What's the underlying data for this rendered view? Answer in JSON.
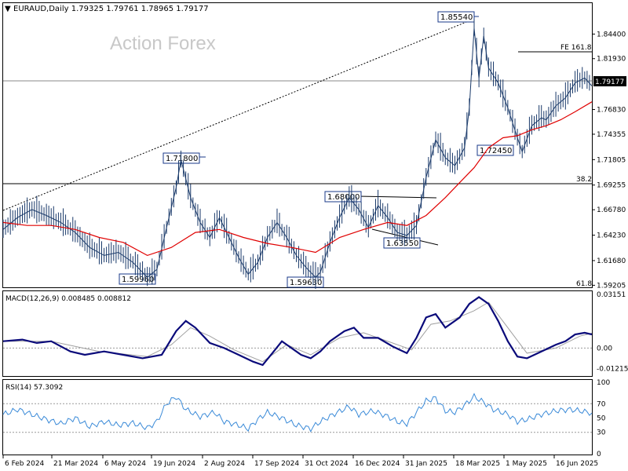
{
  "header": {
    "symbol_info": "EURAUD,Daily  1.79325 1.79761 1.78965 1.79177",
    "watermark": "Action Forex",
    "current_price": "1.79177"
  },
  "colors": {
    "price": "#1a3a6a",
    "ma": "#e00000",
    "macd": "#0a0a7a",
    "signal": "#a0a0a0",
    "rsi": "#3a8ad8",
    "price_tag_bg": "#000000"
  },
  "chart_data": [
    {
      "type": "line",
      "panel": "price",
      "ylim": [
        1.59,
        1.875
      ],
      "y_ticks": [
        "1.84400",
        "1.81930",
        "1.79177",
        "1.76830",
        "1.74355",
        "1.71805",
        "1.69255",
        "1.66780",
        "1.64230",
        "1.61680",
        "1.59205"
      ],
      "x_ticks": [
        "6 Feb 2024",
        "21 Mar 2024",
        "6 May 2024",
        "19 Jun 2024",
        "2 Aug 2024",
        "17 Sep 2024",
        "31 Oct 2024",
        "16 Dec 2024",
        "31 Jan 2025",
        "18 Mar 2025",
        "1 May 2025",
        "16 Jun 2025"
      ],
      "series_points": [
        [
          0,
          1.648
        ],
        [
          6,
          1.66
        ],
        [
          12,
          1.668
        ],
        [
          18,
          1.662
        ],
        [
          24,
          1.655
        ],
        [
          30,
          1.645
        ],
        [
          36,
          1.63
        ],
        [
          42,
          1.622
        ],
        [
          48,
          1.625
        ],
        [
          54,
          1.615
        ],
        [
          60,
          1.6
        ],
        [
          64,
          1.608
        ],
        [
          68,
          1.65
        ],
        [
          72,
          1.69
        ],
        [
          74,
          1.718
        ],
        [
          78,
          1.68
        ],
        [
          82,
          1.655
        ],
        [
          86,
          1.64
        ],
        [
          90,
          1.66
        ],
        [
          94,
          1.64
        ],
        [
          98,
          1.62
        ],
        [
          102,
          1.603
        ],
        [
          106,
          1.615
        ],
        [
          110,
          1.64
        ],
        [
          114,
          1.655
        ],
        [
          118,
          1.64
        ],
        [
          122,
          1.622
        ],
        [
          126,
          1.61
        ],
        [
          130,
          1.6
        ],
        [
          132,
          1.605
        ],
        [
          136,
          1.635
        ],
        [
          140,
          1.66
        ],
        [
          144,
          1.68
        ],
        [
          148,
          1.668
        ],
        [
          152,
          1.65
        ],
        [
          156,
          1.672
        ],
        [
          160,
          1.66
        ],
        [
          164,
          1.645
        ],
        [
          168,
          1.642
        ],
        [
          172,
          1.652
        ],
        [
          176,
          1.7
        ],
        [
          180,
          1.738
        ],
        [
          184,
          1.72
        ],
        [
          188,
          1.712
        ],
        [
          192,
          1.73
        ],
        [
          194,
          1.77
        ],
        [
          196,
          1.85
        ],
        [
          198,
          1.8
        ],
        [
          200,
          1.842
        ],
        [
          202,
          1.81
        ],
        [
          206,
          1.795
        ],
        [
          210,
          1.77
        ],
        [
          214,
          1.74
        ],
        [
          216,
          1.726
        ],
        [
          220,
          1.752
        ],
        [
          224,
          1.76
        ],
        [
          226,
          1.758
        ],
        [
          230,
          1.772
        ],
        [
          234,
          1.78
        ],
        [
          238,
          1.795
        ],
        [
          242,
          1.8
        ],
        [
          245,
          1.792
        ]
      ],
      "ma_points": [
        [
          0,
          1.655
        ],
        [
          10,
          1.652
        ],
        [
          20,
          1.652
        ],
        [
          30,
          1.648
        ],
        [
          40,
          1.64
        ],
        [
          50,
          1.635
        ],
        [
          60,
          1.622
        ],
        [
          70,
          1.63
        ],
        [
          80,
          1.645
        ],
        [
          90,
          1.648
        ],
        [
          100,
          1.64
        ],
        [
          110,
          1.634
        ],
        [
          120,
          1.63
        ],
        [
          130,
          1.625
        ],
        [
          140,
          1.64
        ],
        [
          150,
          1.648
        ],
        [
          160,
          1.655
        ],
        [
          168,
          1.652
        ],
        [
          176,
          1.662
        ],
        [
          184,
          1.68
        ],
        [
          190,
          1.695
        ],
        [
          196,
          1.71
        ],
        [
          202,
          1.73
        ],
        [
          208,
          1.74
        ],
        [
          214,
          1.742
        ],
        [
          220,
          1.748
        ],
        [
          226,
          1.752
        ],
        [
          232,
          1.758
        ],
        [
          238,
          1.766
        ],
        [
          245,
          1.776
        ]
      ],
      "annotations": [
        "1.85540",
        "1.71800",
        "1.68000",
        "1.63550",
        "1.59960",
        "1.59630",
        "1.72450",
        "FE 161.8",
        "38.2",
        "61.8"
      ]
    },
    {
      "type": "line",
      "panel": "macd",
      "title": "MACD(12,26,9) 0.008485 0.008812",
      "ylim": [
        -0.016,
        0.033
      ],
      "y_ticks": [
        "0.03151",
        "0.00",
        "-0.012158"
      ],
      "macd_points": [
        [
          0,
          0.004
        ],
        [
          8,
          0.005
        ],
        [
          14,
          0.003
        ],
        [
          20,
          0.004
        ],
        [
          28,
          -0.002
        ],
        [
          34,
          -0.004
        ],
        [
          42,
          -0.002
        ],
        [
          50,
          -0.004
        ],
        [
          58,
          -0.006
        ],
        [
          66,
          -0.004
        ],
        [
          72,
          0.01
        ],
        [
          76,
          0.016
        ],
        [
          80,
          0.012
        ],
        [
          86,
          0.003
        ],
        [
          92,
          0.0
        ],
        [
          98,
          -0.004
        ],
        [
          104,
          -0.008
        ],
        [
          108,
          -0.01
        ],
        [
          112,
          -0.003
        ],
        [
          116,
          0.004
        ],
        [
          120,
          0.0
        ],
        [
          124,
          -0.004
        ],
        [
          128,
          -0.006
        ],
        [
          132,
          -0.002
        ],
        [
          136,
          0.004
        ],
        [
          142,
          0.01
        ],
        [
          146,
          0.012
        ],
        [
          150,
          0.006
        ],
        [
          156,
          0.006
        ],
        [
          162,
          0.001
        ],
        [
          168,
          -0.003
        ],
        [
          172,
          0.006
        ],
        [
          176,
          0.018
        ],
        [
          180,
          0.02
        ],
        [
          184,
          0.012
        ],
        [
          190,
          0.018
        ],
        [
          194,
          0.026
        ],
        [
          198,
          0.03
        ],
        [
          202,
          0.026
        ],
        [
          206,
          0.016
        ],
        [
          210,
          0.004
        ],
        [
          214,
          -0.005
        ],
        [
          218,
          -0.006
        ],
        [
          224,
          -0.002
        ],
        [
          230,
          0.002
        ],
        [
          234,
          0.004
        ],
        [
          238,
          0.008
        ],
        [
          242,
          0.009
        ],
        [
          245,
          0.008
        ]
      ],
      "signal_points": [
        [
          0,
          0.004
        ],
        [
          20,
          0.004
        ],
        [
          40,
          -0.002
        ],
        [
          60,
          -0.005
        ],
        [
          70,
          0.002
        ],
        [
          78,
          0.012
        ],
        [
          86,
          0.007
        ],
        [
          96,
          -0.001
        ],
        [
          108,
          -0.008
        ],
        [
          118,
          0.002
        ],
        [
          128,
          -0.004
        ],
        [
          140,
          0.006
        ],
        [
          150,
          0.009
        ],
        [
          162,
          0.003
        ],
        [
          170,
          -0.001
        ],
        [
          178,
          0.014
        ],
        [
          186,
          0.016
        ],
        [
          196,
          0.022
        ],
        [
          202,
          0.027
        ],
        [
          210,
          0.012
        ],
        [
          218,
          -0.003
        ],
        [
          230,
          0.0
        ],
        [
          240,
          0.007
        ],
        [
          245,
          0.0088
        ]
      ]
    },
    {
      "type": "line",
      "panel": "rsi",
      "title": "RSI(14) 57.3092",
      "ylim": [
        0,
        100
      ],
      "y_ticks": [
        "100",
        "70",
        "50",
        "30",
        "0"
      ],
      "levels": [
        70,
        30
      ],
      "rsi_points": [
        [
          0,
          55
        ],
        [
          6,
          62
        ],
        [
          12,
          55
        ],
        [
          18,
          48
        ],
        [
          24,
          42
        ],
        [
          30,
          50
        ],
        [
          36,
          38
        ],
        [
          42,
          45
        ],
        [
          48,
          40
        ],
        [
          54,
          43
        ],
        [
          60,
          36
        ],
        [
          64,
          45
        ],
        [
          68,
          70
        ],
        [
          72,
          80
        ],
        [
          76,
          62
        ],
        [
          82,
          52
        ],
        [
          88,
          58
        ],
        [
          92,
          45
        ],
        [
          98,
          40
        ],
        [
          102,
          35
        ],
        [
          106,
          48
        ],
        [
          110,
          58
        ],
        [
          116,
          50
        ],
        [
          122,
          40
        ],
        [
          128,
          35
        ],
        [
          132,
          45
        ],
        [
          138,
          56
        ],
        [
          144,
          66
        ],
        [
          148,
          55
        ],
        [
          154,
          60
        ],
        [
          160,
          52
        ],
        [
          164,
          45
        ],
        [
          168,
          42
        ],
        [
          172,
          58
        ],
        [
          176,
          74
        ],
        [
          180,
          78
        ],
        [
          184,
          60
        ],
        [
          188,
          58
        ],
        [
          192,
          68
        ],
        [
          196,
          80
        ],
        [
          200,
          72
        ],
        [
          204,
          62
        ],
        [
          210,
          55
        ],
        [
          214,
          45
        ],
        [
          218,
          48
        ],
        [
          224,
          55
        ],
        [
          230,
          60
        ],
        [
          236,
          62
        ],
        [
          240,
          60
        ],
        [
          245,
          57
        ]
      ]
    }
  ]
}
